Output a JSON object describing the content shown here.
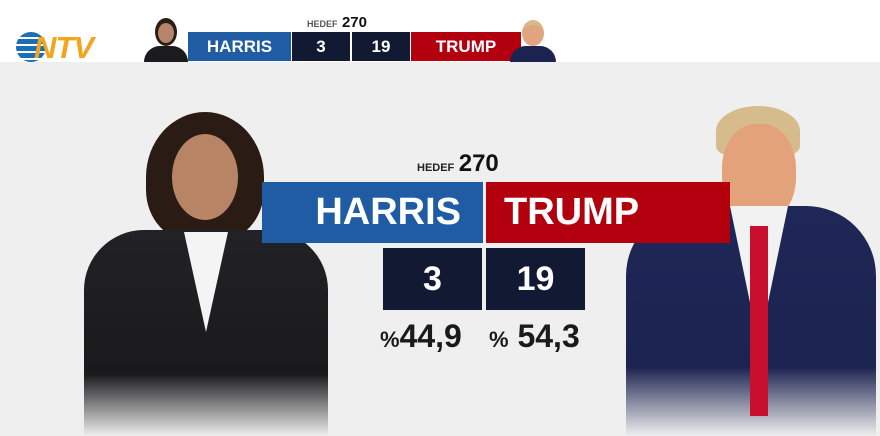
{
  "brand": {
    "logo_text": "NTV"
  },
  "target": {
    "label": "HEDEF",
    "value": "270"
  },
  "candidates": [
    {
      "name": "HARRIS",
      "electoral_votes": "3",
      "percent_sign": "%",
      "percent": "44,9",
      "color": "#1f5ca3"
    },
    {
      "name": "TRUMP",
      "electoral_votes": "19",
      "percent_sign": "%",
      "percent": "54,3",
      "color": "#b2000f"
    }
  ]
}
